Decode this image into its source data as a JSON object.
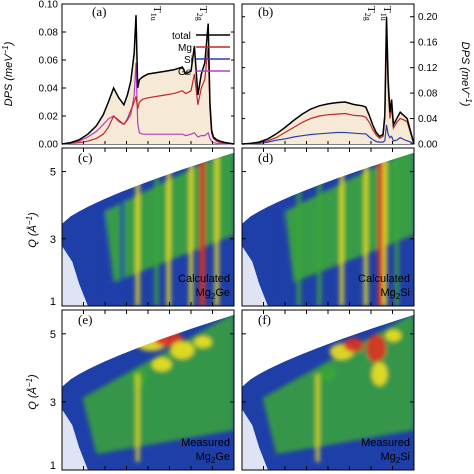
{
  "colors": {
    "total": "#000000",
    "Mg": "#c0282d",
    "Si": "#2a3fb0",
    "Ge": "#b040c0",
    "fill": "#f6ead6",
    "map_bg": "#ffffff",
    "map_low": "#1f3fa8",
    "map_mid": "#3aa63a",
    "map_high": "#f0e020",
    "map_peak": "#e03020"
  },
  "axes": {
    "dps_label": "DPS (meV",
    "dps_unit_sup": "−1",
    "dps_label_close": ")",
    "q_label": "Q (Å",
    "q_unit_sup": "−1",
    "q_label_close": ")"
  },
  "panels": {
    "a": {
      "tag": "(a)"
    },
    "b": {
      "tag": "(b)"
    },
    "c": {
      "tag": "(c)",
      "caption_line1": "Calculated",
      "caption_base": "Mg",
      "caption_sub": "2",
      "caption_tail": "Ge"
    },
    "d": {
      "tag": "(d)",
      "caption_line1": "Calculated",
      "caption_base": "Mg",
      "caption_sub": "2",
      "caption_tail": "Si"
    },
    "e": {
      "tag": "(e)",
      "caption_line1": "Measured",
      "caption_base": "Mg",
      "caption_sub": "2",
      "caption_tail": "Ge"
    },
    "f": {
      "tag": "(f)",
      "caption_line1": "Measured",
      "caption_base": "Mg",
      "caption_sub": "2",
      "caption_tail": "Si"
    }
  },
  "mode_labels": {
    "ge_t1u": {
      "base": "T",
      "sub": "1u"
    },
    "ge_t2g": {
      "base": "T",
      "sub": "2g"
    },
    "si_t2g": {
      "base": "T",
      "sub": "2g"
    },
    "si_t1u": {
      "base": "T",
      "sub": "1u"
    }
  },
  "chart_data": [
    {
      "type": "line",
      "panel": "a",
      "ylim": [
        0,
        0.1
      ],
      "yticks": [
        "0.00",
        "0.02",
        "0.04",
        "0.06",
        "0.08",
        "0.10"
      ],
      "ytick_values": [
        0,
        0.02,
        0.04,
        0.06,
        0.08,
        0.1
      ],
      "xlim": [
        0,
        1
      ],
      "legend": [
        "total",
        "Mg",
        "Si",
        "Ge"
      ],
      "legend_position": "top-right",
      "series": [
        {
          "name": "total",
          "x": [
            0,
            0.05,
            0.1,
            0.15,
            0.2,
            0.24,
            0.27,
            0.3,
            0.33,
            0.36,
            0.38,
            0.4,
            0.42,
            0.43,
            0.44,
            0.45,
            0.47,
            0.5,
            0.55,
            0.6,
            0.65,
            0.7,
            0.72,
            0.75,
            0.77,
            0.79,
            0.81,
            0.83,
            0.85,
            0.86,
            0.87,
            0.88,
            0.9,
            0.92,
            0.95,
            1
          ],
          "y": [
            0,
            0.001,
            0.003,
            0.007,
            0.013,
            0.021,
            0.03,
            0.04,
            0.033,
            0.028,
            0.035,
            0.045,
            0.065,
            0.092,
            0.04,
            0.046,
            0.048,
            0.05,
            0.051,
            0.052,
            0.053,
            0.055,
            0.05,
            0.052,
            0.07,
            0.035,
            0.05,
            0.058,
            0.086,
            0.03,
            0.01,
            0.005,
            0.003,
            0.002,
            0.001,
            0
          ]
        },
        {
          "name": "Mg",
          "x": [
            0,
            0.05,
            0.1,
            0.15,
            0.2,
            0.24,
            0.27,
            0.3,
            0.33,
            0.36,
            0.38,
            0.4,
            0.42,
            0.43,
            0.44,
            0.45,
            0.47,
            0.5,
            0.55,
            0.6,
            0.65,
            0.7,
            0.72,
            0.75,
            0.77,
            0.79,
            0.81,
            0.83,
            0.85,
            0.86,
            0.87,
            0.88,
            0.9,
            0.92,
            0.95,
            1
          ],
          "y": [
            0,
            0.0005,
            0.001,
            0.002,
            0.004,
            0.007,
            0.012,
            0.02,
            0.017,
            0.014,
            0.018,
            0.024,
            0.03,
            0.034,
            0.025,
            0.03,
            0.032,
            0.033,
            0.034,
            0.035,
            0.036,
            0.038,
            0.036,
            0.038,
            0.05,
            0.028,
            0.04,
            0.046,
            0.07,
            0.025,
            0.008,
            0.004,
            0.002,
            0.001,
            0.0005,
            0
          ]
        },
        {
          "name": "Ge",
          "x": [
            0,
            0.05,
            0.1,
            0.15,
            0.2,
            0.24,
            0.27,
            0.3,
            0.33,
            0.36,
            0.38,
            0.4,
            0.42,
            0.43,
            0.44,
            0.45,
            0.47,
            0.5,
            0.55,
            0.6,
            0.65,
            0.7,
            0.72,
            0.75,
            0.77,
            0.79,
            0.81,
            0.83,
            0.85,
            0.86,
            0.87,
            0.88,
            0.9,
            0.92,
            0.95,
            1
          ],
          "y": [
            0,
            0.0005,
            0.002,
            0.005,
            0.009,
            0.014,
            0.018,
            0.02,
            0.016,
            0.014,
            0.017,
            0.021,
            0.035,
            0.058,
            0.015,
            0.008,
            0.007,
            0.007,
            0.007,
            0.007,
            0.007,
            0.007,
            0.006,
            0.007,
            0.008,
            0.005,
            0.006,
            0.006,
            0.008,
            0.004,
            0.002,
            0.001,
            0.0005,
            0.0003,
            0.0002,
            0
          ]
        }
      ]
    },
    {
      "type": "line",
      "panel": "b",
      "ylim": [
        0,
        0.22
      ],
      "yticks": [
        "0.00",
        "0.04",
        "0.08",
        "0.12",
        "0.16",
        "0.20"
      ],
      "ytick_values": [
        0,
        0.04,
        0.08,
        0.12,
        0.16,
        0.2
      ],
      "xlim": [
        0,
        1
      ],
      "series": [
        {
          "name": "total",
          "x": [
            0,
            0.05,
            0.1,
            0.15,
            0.2,
            0.25,
            0.3,
            0.35,
            0.4,
            0.45,
            0.5,
            0.55,
            0.6,
            0.65,
            0.7,
            0.72,
            0.74,
            0.76,
            0.78,
            0.8,
            0.82,
            0.83,
            0.84,
            0.85,
            0.86,
            0.87,
            0.88,
            0.9,
            0.92,
            0.94,
            0.96,
            0.98,
            1
          ],
          "y": [
            0,
            0.001,
            0.003,
            0.008,
            0.016,
            0.026,
            0.037,
            0.047,
            0.055,
            0.06,
            0.063,
            0.065,
            0.066,
            0.062,
            0.06,
            0.058,
            0.045,
            0.03,
            0.018,
            0.012,
            0.015,
            0.045,
            0.2,
            0.1,
            0.05,
            0.07,
            0.03,
            0.04,
            0.05,
            0.045,
            0.04,
            0.02,
            0
          ]
        },
        {
          "name": "Mg",
          "x": [
            0,
            0.05,
            0.1,
            0.15,
            0.2,
            0.25,
            0.3,
            0.35,
            0.4,
            0.45,
            0.5,
            0.55,
            0.6,
            0.65,
            0.7,
            0.72,
            0.74,
            0.76,
            0.78,
            0.8,
            0.82,
            0.83,
            0.84,
            0.85,
            0.86,
            0.87,
            0.88,
            0.9,
            0.92,
            0.94,
            0.96,
            0.98,
            1
          ],
          "y": [
            0,
            0.0005,
            0.002,
            0.005,
            0.01,
            0.018,
            0.026,
            0.034,
            0.04,
            0.044,
            0.046,
            0.047,
            0.048,
            0.045,
            0.044,
            0.042,
            0.034,
            0.023,
            0.014,
            0.009,
            0.012,
            0.04,
            0.17,
            0.085,
            0.04,
            0.058,
            0.025,
            0.034,
            0.04,
            0.038,
            0.035,
            0.017,
            0
          ]
        },
        {
          "name": "Si",
          "x": [
            0,
            0.05,
            0.1,
            0.15,
            0.2,
            0.25,
            0.3,
            0.35,
            0.4,
            0.45,
            0.5,
            0.55,
            0.6,
            0.65,
            0.7,
            0.72,
            0.74,
            0.76,
            0.78,
            0.8,
            0.82,
            0.83,
            0.84,
            0.85,
            0.86,
            0.87,
            0.88,
            0.9,
            0.92,
            0.94,
            0.96,
            0.98,
            1
          ],
          "y": [
            0,
            0.0005,
            0.001,
            0.003,
            0.006,
            0.008,
            0.011,
            0.013,
            0.015,
            0.016,
            0.017,
            0.018,
            0.018,
            0.017,
            0.016,
            0.016,
            0.011,
            0.007,
            0.004,
            0.003,
            0.003,
            0.005,
            0.03,
            0.015,
            0.01,
            0.012,
            0.005,
            0.006,
            0.01,
            0.007,
            0.005,
            0.003,
            0
          ]
        }
      ]
    },
    {
      "type": "heatmap",
      "panel": "c",
      "ylabel": "Q (Å−1)",
      "yticks": [
        "1",
        "3",
        "5"
      ],
      "ytick_values": [
        1,
        3,
        5
      ],
      "ylim": [
        1,
        5.7
      ]
    },
    {
      "type": "heatmap",
      "panel": "d",
      "yticks": [
        "1",
        "3",
        "5"
      ],
      "ytick_values": [
        1,
        3,
        5
      ],
      "ylim": [
        1,
        5.7
      ]
    },
    {
      "type": "heatmap",
      "panel": "e",
      "ylabel": "Q (Å−1)",
      "yticks": [
        "1",
        "3",
        "5"
      ],
      "ytick_values": [
        1,
        3,
        5
      ],
      "ylim": [
        1,
        5.7
      ]
    },
    {
      "type": "heatmap",
      "panel": "f",
      "yticks": [
        "1",
        "3",
        "5"
      ],
      "ytick_values": [
        1,
        3,
        5
      ],
      "ylim": [
        1,
        5.7
      ]
    }
  ]
}
